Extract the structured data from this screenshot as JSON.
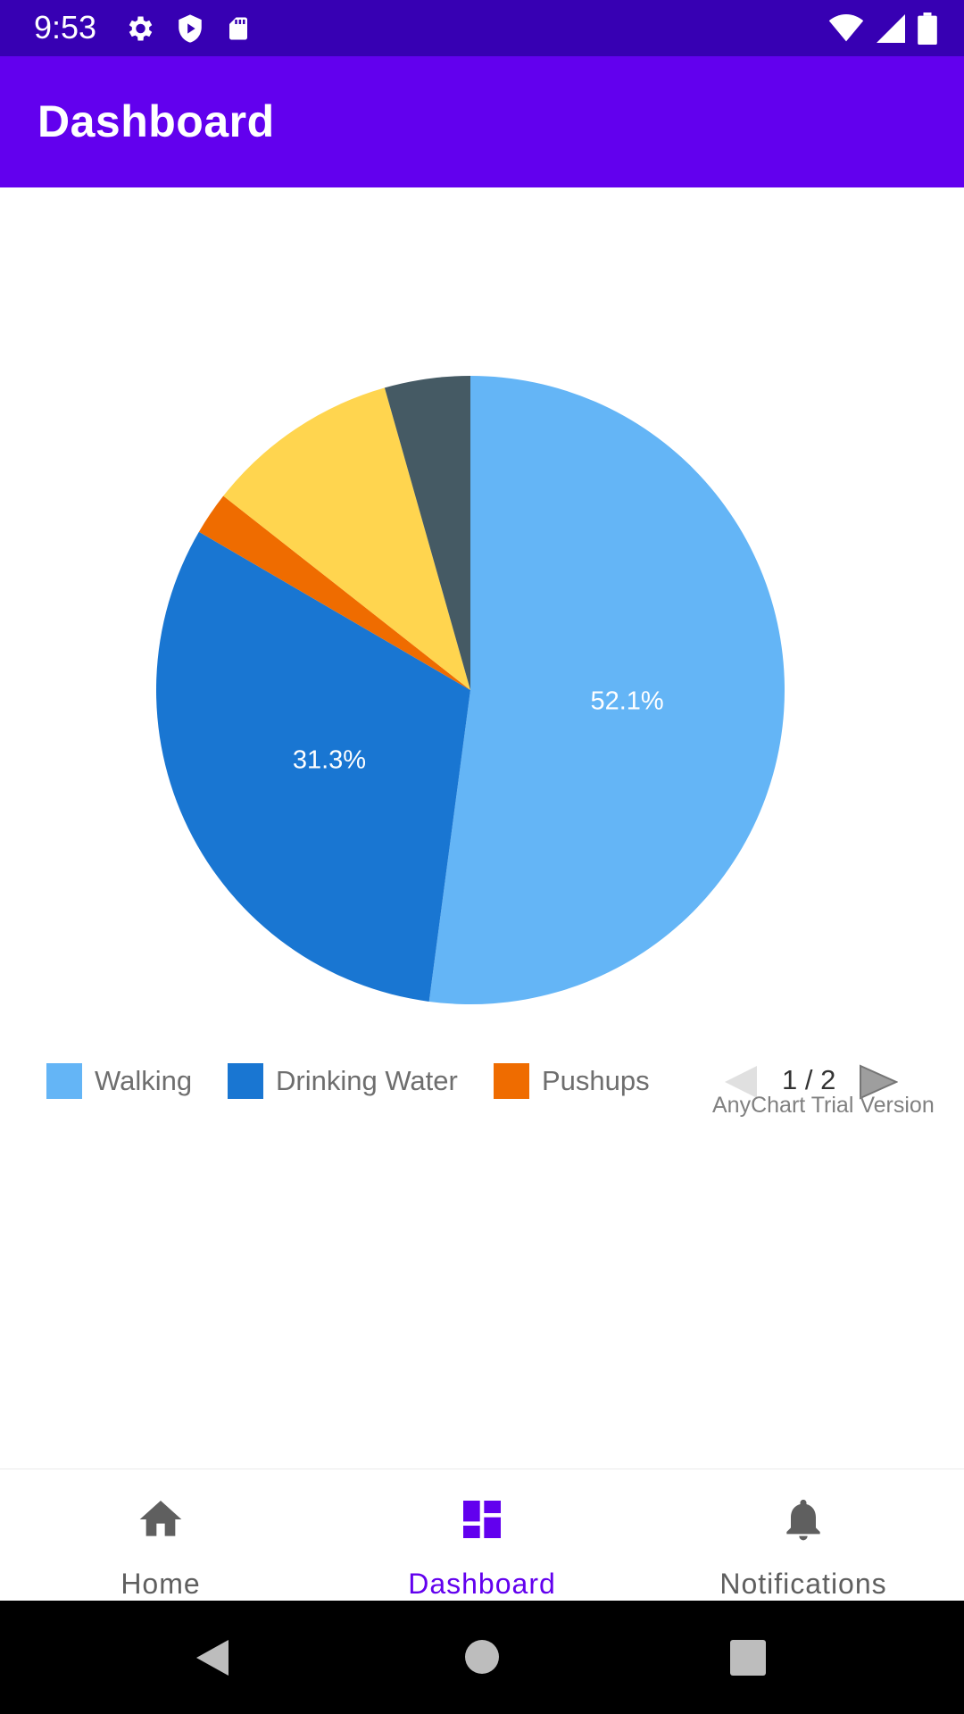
{
  "status_bar": {
    "time": "9:53",
    "icons": [
      "settings-icon",
      "shield-play-icon",
      "sd-card-icon",
      "wifi-icon",
      "signal-icon",
      "battery-icon"
    ]
  },
  "app_bar": {
    "title": "Dashboard"
  },
  "chart_data": {
    "type": "pie",
    "slices": [
      {
        "label": "Walking",
        "value": 52.1,
        "color": "#64b5f6",
        "show_label": "52.1%"
      },
      {
        "label": "Drinking Water",
        "value": 31.3,
        "color": "#1976d2",
        "show_label": "31.3%"
      },
      {
        "label": "Pushups",
        "value": 2.2,
        "color": "#ef6c00",
        "show_label": ""
      },
      {
        "label": "",
        "value": 10.0,
        "color": "#ffd54f",
        "show_label": ""
      },
      {
        "label": "",
        "value": 4.4,
        "color": "#455a64",
        "show_label": ""
      }
    ],
    "legend": [
      "Walking",
      "Drinking Water",
      "Pushups"
    ],
    "legend_page": "1 / 2",
    "watermark": "AnyChart Trial Version"
  },
  "bottom_nav": {
    "items": [
      {
        "label": "Home",
        "icon": "home-icon",
        "active": false
      },
      {
        "label": "Dashboard",
        "icon": "dashboard-icon",
        "active": true
      },
      {
        "label": "Notifications",
        "icon": "bell-icon",
        "active": false
      }
    ],
    "active_color": "#6200ee",
    "inactive_color": "#5f5f5f"
  },
  "system_nav": {
    "icons": [
      "back-icon",
      "home-circle-icon",
      "recents-icon"
    ]
  }
}
